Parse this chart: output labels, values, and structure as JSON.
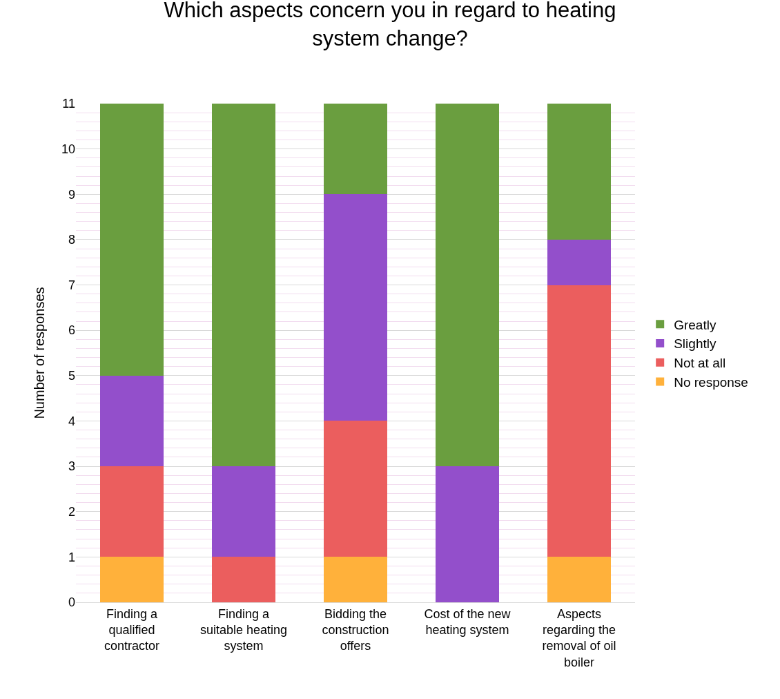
{
  "chart_data": {
    "type": "bar",
    "stacked": true,
    "title": "Which aspects concern you in regard to heating system change?",
    "ylabel": "Number of responses",
    "categories": [
      "Finding a qualified contractor",
      "Finding a suitable heating system",
      "Bidding the construction offers",
      "Cost of the new heating system",
      "Aspects regarding the removal of oil boiler"
    ],
    "series": [
      {
        "name": "No response",
        "color": "#ffb13b",
        "values": [
          1,
          0,
          1,
          0,
          1
        ]
      },
      {
        "name": "Not at all",
        "color": "#eb5e5e",
        "values": [
          2,
          1,
          3,
          0,
          6
        ]
      },
      {
        "name": "Slightly",
        "color": "#934fcb",
        "values": [
          2,
          2,
          5,
          3,
          1
        ]
      },
      {
        "name": "Greatly",
        "color": "#6a9e3f",
        "values": [
          6,
          8,
          2,
          8,
          3
        ]
      }
    ],
    "ylim": [
      0,
      11
    ],
    "yticks": [
      0,
      1,
      2,
      3,
      4,
      5,
      6,
      7,
      8,
      9,
      10,
      11
    ],
    "grid": "y",
    "legend": "right"
  }
}
